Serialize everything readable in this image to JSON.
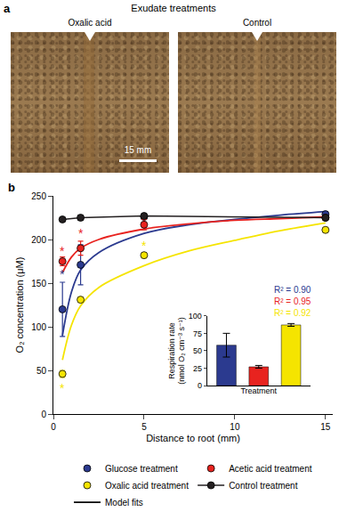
{
  "panel_a": {
    "letter": "a",
    "title": "Exudate treatments",
    "photos": [
      {
        "label": "Oxalic acid"
      },
      {
        "label": "Control"
      }
    ],
    "scale_bar": "15 mm"
  },
  "chart_data": [
    {
      "panel_label": "b",
      "type": "scatter",
      "x_label": "Distance to root (mm)",
      "y_label": "O₂ concentration (μM)",
      "xlim": [
        0,
        15.4
      ],
      "xticks": [
        0,
        5,
        10,
        15
      ],
      "ylim": [
        0,
        250
      ],
      "yticks": [
        0,
        50,
        100,
        150,
        200,
        250
      ],
      "grid": false,
      "legend": "bottom",
      "x": [
        0.5,
        1.5,
        5,
        15
      ],
      "series": [
        {
          "name": "Glucose treatment",
          "color": "#2b3a8f",
          "marker": "circle",
          "values": [
            120,
            171,
            226,
            229
          ],
          "error": [
            31,
            23,
            3,
            3
          ]
        },
        {
          "name": "Acetic acid treatment",
          "color": "#e8231f",
          "marker": "circle",
          "values": [
            175,
            190,
            217,
            225
          ],
          "error": [
            5,
            8,
            6,
            2
          ]
        },
        {
          "name": "Oxalic acid treatment",
          "color": "#f5e400",
          "marker": "circle",
          "values": [
            46,
            131,
            182,
            211
          ],
          "error": [
            4,
            3,
            3,
            3
          ]
        },
        {
          "name": "Control treatment",
          "color": "#231f20",
          "marker": "circle",
          "line_style": "solid",
          "values": [
            223,
            225,
            227,
            225
          ],
          "error": [
            2,
            3,
            3,
            2
          ]
        }
      ],
      "model_fits": {
        "name": "Model fits",
        "color": "#000000",
        "line_style": "solid",
        "x": [
          0.5,
          1,
          1.5,
          2.5,
          5,
          7.5,
          10,
          12.5,
          15
        ],
        "series": [
          {
            "color": "#2b3a8f",
            "values": [
              90,
              140,
              165,
              185,
              207,
              217,
              223,
              228,
              232
            ]
          },
          {
            "color": "#e8231f",
            "values": [
              162,
              180,
              190,
              200,
              212,
              218,
              222,
              224,
              226
            ]
          },
          {
            "color": "#f5e400",
            "values": [
              62,
              102,
              124,
              145,
              170,
              187,
              199,
              210,
              219
            ]
          }
        ]
      },
      "annotations": [
        {
          "text": "R² = 0.90",
          "x": 13.2,
          "y": 142,
          "color": "#2b3a8f"
        },
        {
          "text": "R² = 0.95",
          "x": 13.2,
          "y": 129,
          "color": "#e8231f"
        },
        {
          "text": "R² = 0.92",
          "x": 13.2,
          "y": 116,
          "color": "#f5e400"
        },
        {
          "text": "*",
          "x": 0.5,
          "y": 160,
          "color": "#2b3a8f"
        },
        {
          "text": "*",
          "x": 0.5,
          "y": 187,
          "color": "#e8231f"
        },
        {
          "text": "*",
          "x": 1.5,
          "y": 207,
          "color": "#e8231f"
        },
        {
          "text": "*",
          "x": 5,
          "y": 193,
          "color": "#f5e400"
        },
        {
          "text": "*",
          "x": 0.5,
          "y": 30,
          "color": "#f5e400"
        }
      ]
    },
    {
      "type": "bar",
      "x_label": "Treatment",
      "y_label": "Respiration rate (nmol O₂ cm⁻³ s⁻¹)",
      "categories": [
        null,
        null,
        null
      ],
      "values": [
        58,
        27,
        87
      ],
      "error": [
        17,
        2,
        2
      ],
      "colors": [
        "#2b3a8f",
        "#e8231f",
        "#f5e400"
      ],
      "ylim": [
        0,
        100
      ],
      "yticks": [
        0,
        25,
        50,
        75,
        100
      ],
      "tick_labels": "y"
    }
  ]
}
